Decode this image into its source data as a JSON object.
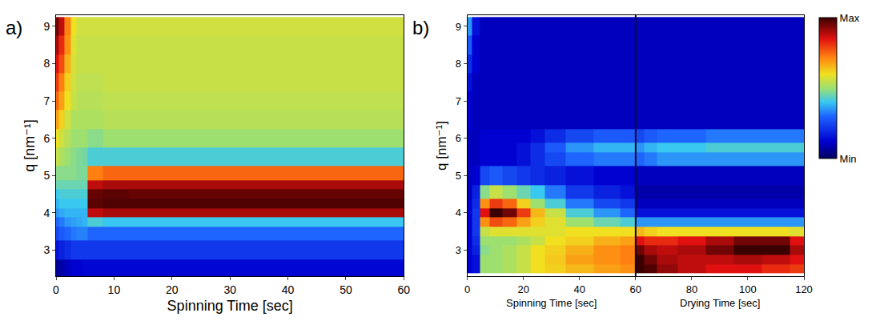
{
  "chart_data": [
    {
      "type": "heatmap",
      "panel": "a)",
      "x_label": "Spinning Time [sec]",
      "y_label": "q [nm⁻¹]",
      "xlim": [
        0,
        60
      ],
      "ylim": [
        2.3,
        9.3
      ],
      "xticks": [
        0,
        10,
        20,
        30,
        40,
        50,
        60
      ],
      "yticks": [
        3,
        4,
        5,
        6,
        7,
        8,
        9
      ],
      "zlim": [
        0,
        1
      ],
      "x": [
        0,
        1,
        2,
        3,
        4,
        5,
        6,
        10,
        15,
        20,
        25,
        30,
        35,
        40,
        45,
        50,
        55,
        60
      ],
      "y": [
        2.5,
        3.0,
        3.5,
        3.75,
        4.0,
        4.25,
        4.5,
        4.75,
        5.0,
        5.5,
        6.0,
        6.5,
        7.0,
        7.5,
        8.0,
        8.5,
        9.0
      ],
      "z": [
        [
          0.05,
          0.08,
          0.1,
          0.12,
          0.12,
          0.13,
          0.13,
          0.13,
          0.13,
          0.13,
          0.13,
          0.13,
          0.13,
          0.13,
          0.13,
          0.13,
          0.13,
          0.13
        ],
        [
          0.15,
          0.18,
          0.2,
          0.22,
          0.22,
          0.22,
          0.22,
          0.22,
          0.22,
          0.22,
          0.22,
          0.22,
          0.22,
          0.22,
          0.22,
          0.22,
          0.22,
          0.22
        ],
        [
          0.25,
          0.28,
          0.3,
          0.32,
          0.33,
          0.33,
          0.3,
          0.3,
          0.3,
          0.3,
          0.3,
          0.3,
          0.3,
          0.3,
          0.3,
          0.3,
          0.3,
          0.3
        ],
        [
          0.3,
          0.32,
          0.35,
          0.36,
          0.37,
          0.38,
          0.42,
          0.4,
          0.4,
          0.4,
          0.4,
          0.4,
          0.4,
          0.4,
          0.4,
          0.4,
          0.4,
          0.4
        ],
        [
          0.35,
          0.37,
          0.38,
          0.38,
          0.38,
          0.38,
          0.88,
          0.9,
          0.9,
          0.9,
          0.9,
          0.9,
          0.9,
          0.9,
          0.9,
          0.9,
          0.9,
          0.9
        ],
        [
          0.38,
          0.4,
          0.4,
          0.4,
          0.4,
          0.4,
          0.97,
          0.98,
          0.98,
          0.98,
          0.98,
          0.98,
          0.98,
          0.98,
          0.98,
          0.98,
          0.98,
          0.98
        ],
        [
          0.4,
          0.42,
          0.42,
          0.42,
          0.42,
          0.42,
          0.96,
          0.97,
          0.96,
          0.96,
          0.96,
          0.96,
          0.96,
          0.96,
          0.96,
          0.96,
          0.96,
          0.96
        ],
        [
          0.45,
          0.45,
          0.45,
          0.45,
          0.45,
          0.45,
          0.88,
          0.9,
          0.9,
          0.9,
          0.9,
          0.9,
          0.9,
          0.9,
          0.9,
          0.9,
          0.9,
          0.9
        ],
        [
          0.48,
          0.48,
          0.48,
          0.48,
          0.47,
          0.47,
          0.72,
          0.75,
          0.75,
          0.75,
          0.75,
          0.75,
          0.75,
          0.75,
          0.75,
          0.75,
          0.75,
          0.75
        ],
        [
          0.55,
          0.52,
          0.5,
          0.48,
          0.47,
          0.46,
          0.42,
          0.42,
          0.42,
          0.42,
          0.42,
          0.42,
          0.42,
          0.42,
          0.42,
          0.42,
          0.42,
          0.42
        ],
        [
          0.6,
          0.56,
          0.53,
          0.5,
          0.5,
          0.5,
          0.48,
          0.5,
          0.5,
          0.5,
          0.5,
          0.5,
          0.5,
          0.5,
          0.5,
          0.5,
          0.5,
          0.5
        ],
        [
          0.68,
          0.62,
          0.56,
          0.52,
          0.52,
          0.52,
          0.52,
          0.53,
          0.53,
          0.53,
          0.53,
          0.53,
          0.53,
          0.53,
          0.53,
          0.53,
          0.53,
          0.53
        ],
        [
          0.75,
          0.68,
          0.6,
          0.55,
          0.53,
          0.53,
          0.53,
          0.54,
          0.54,
          0.54,
          0.54,
          0.54,
          0.54,
          0.54,
          0.54,
          0.54,
          0.54,
          0.54
        ],
        [
          0.8,
          0.72,
          0.62,
          0.56,
          0.54,
          0.54,
          0.54,
          0.55,
          0.55,
          0.55,
          0.55,
          0.55,
          0.55,
          0.55,
          0.55,
          0.55,
          0.55,
          0.55
        ],
        [
          0.85,
          0.78,
          0.66,
          0.57,
          0.55,
          0.55,
          0.55,
          0.55,
          0.55,
          0.55,
          0.55,
          0.55,
          0.55,
          0.55,
          0.55,
          0.55,
          0.55,
          0.55
        ],
        [
          0.9,
          0.82,
          0.7,
          0.58,
          0.55,
          0.55,
          0.55,
          0.55,
          0.55,
          0.55,
          0.55,
          0.55,
          0.55,
          0.55,
          0.55,
          0.55,
          0.55,
          0.55
        ],
        [
          0.95,
          0.88,
          0.72,
          0.6,
          0.56,
          0.56,
          0.56,
          0.56,
          0.56,
          0.56,
          0.56,
          0.56,
          0.56,
          0.56,
          0.56,
          0.56,
          0.56,
          0.56
        ]
      ]
    },
    {
      "type": "heatmap",
      "panel": "b)",
      "y_label": "q [nm⁻¹]",
      "phases": [
        {
          "label": "Spinning Time [sec]",
          "from": 0,
          "to": 60
        },
        {
          "label": "Drying Time [sec]",
          "from": 60,
          "to": 120
        }
      ],
      "xlim": [
        0,
        120
      ],
      "ylim": [
        2.3,
        9.3
      ],
      "xticks": [
        0,
        20,
        40,
        60,
        80,
        100,
        120
      ],
      "yticks": [
        3,
        4,
        5,
        6,
        7,
        8,
        9
      ],
      "colorbar": {
        "range": [
          0,
          1
        ],
        "ticks": [
          {
            "value": 1,
            "label": "Max"
          },
          {
            "value": 0,
            "label": "Min"
          }
        ]
      },
      "x": [
        0,
        3,
        6,
        10,
        15,
        20,
        25,
        30,
        40,
        50,
        59,
        61,
        65,
        70,
        80,
        90,
        100,
        110,
        120
      ],
      "y": [
        2.5,
        2.75,
        3.0,
        3.25,
        3.5,
        3.75,
        4.0,
        4.25,
        4.5,
        5.0,
        5.5,
        5.75,
        6.0,
        6.5,
        7.0,
        7.5,
        8.0,
        8.5,
        9.0
      ],
      "z": [
        [
          0.12,
          0.15,
          0.5,
          0.5,
          0.52,
          0.55,
          0.6,
          0.62,
          0.65,
          0.68,
          0.7,
          1.0,
          0.98,
          0.92,
          0.88,
          0.85,
          0.85,
          0.82,
          0.8
        ],
        [
          0.12,
          0.15,
          0.5,
          0.5,
          0.52,
          0.55,
          0.6,
          0.63,
          0.68,
          0.7,
          0.72,
          1.0,
          0.95,
          0.9,
          0.88,
          0.88,
          0.9,
          0.88,
          0.85
        ],
        [
          0.12,
          0.18,
          0.48,
          0.5,
          0.52,
          0.55,
          0.6,
          0.62,
          0.66,
          0.7,
          0.72,
          0.95,
          0.9,
          0.88,
          0.9,
          0.95,
          1.0,
          1.0,
          0.9
        ],
        [
          0.12,
          0.2,
          0.5,
          0.5,
          0.5,
          0.52,
          0.55,
          0.6,
          0.62,
          0.66,
          0.68,
          0.85,
          0.82,
          0.82,
          0.85,
          0.9,
          0.95,
          0.95,
          0.85
        ],
        [
          0.12,
          0.22,
          0.55,
          0.58,
          0.58,
          0.58,
          0.58,
          0.58,
          0.6,
          0.6,
          0.6,
          0.65,
          0.62,
          0.6,
          0.6,
          0.6,
          0.6,
          0.6,
          0.58
        ],
        [
          0.12,
          0.22,
          0.7,
          0.78,
          0.75,
          0.68,
          0.62,
          0.58,
          0.5,
          0.45,
          0.42,
          0.35,
          0.35,
          0.35,
          0.35,
          0.35,
          0.35,
          0.35,
          0.35
        ],
        [
          0.12,
          0.22,
          0.85,
          1.0,
          0.95,
          0.8,
          0.65,
          0.55,
          0.42,
          0.35,
          0.3,
          0.15,
          0.15,
          0.15,
          0.15,
          0.15,
          0.15,
          0.15,
          0.15
        ],
        [
          0.12,
          0.2,
          0.7,
          0.8,
          0.75,
          0.62,
          0.5,
          0.42,
          0.32,
          0.25,
          0.22,
          0.1,
          0.1,
          0.1,
          0.1,
          0.1,
          0.1,
          0.1,
          0.1
        ],
        [
          0.1,
          0.18,
          0.48,
          0.55,
          0.5,
          0.45,
          0.4,
          0.32,
          0.22,
          0.18,
          0.15,
          0.08,
          0.08,
          0.08,
          0.08,
          0.08,
          0.08,
          0.08,
          0.08
        ],
        [
          0.1,
          0.12,
          0.25,
          0.28,
          0.25,
          0.22,
          0.2,
          0.18,
          0.15,
          0.12,
          0.12,
          0.1,
          0.1,
          0.1,
          0.1,
          0.1,
          0.1,
          0.1,
          0.1
        ],
        [
          0.1,
          0.1,
          0.12,
          0.12,
          0.12,
          0.15,
          0.2,
          0.25,
          0.3,
          0.32,
          0.32,
          0.3,
          0.32,
          0.35,
          0.35,
          0.35,
          0.35,
          0.35,
          0.35
        ],
        [
          0.1,
          0.1,
          0.12,
          0.12,
          0.12,
          0.15,
          0.2,
          0.28,
          0.35,
          0.38,
          0.38,
          0.35,
          0.38,
          0.4,
          0.4,
          0.42,
          0.42,
          0.42,
          0.42
        ],
        [
          0.1,
          0.1,
          0.12,
          0.12,
          0.12,
          0.12,
          0.15,
          0.2,
          0.25,
          0.28,
          0.28,
          0.25,
          0.28,
          0.3,
          0.3,
          0.32,
          0.32,
          0.32,
          0.32
        ],
        [
          0.12,
          0.1,
          0.1,
          0.1,
          0.1,
          0.1,
          0.1,
          0.1,
          0.1,
          0.1,
          0.1,
          0.1,
          0.1,
          0.1,
          0.1,
          0.1,
          0.1,
          0.1,
          0.1
        ],
        [
          0.12,
          0.1,
          0.1,
          0.1,
          0.1,
          0.1,
          0.1,
          0.1,
          0.1,
          0.1,
          0.1,
          0.1,
          0.1,
          0.1,
          0.1,
          0.1,
          0.1,
          0.1,
          0.1
        ],
        [
          0.15,
          0.1,
          0.1,
          0.1,
          0.1,
          0.1,
          0.1,
          0.1,
          0.1,
          0.1,
          0.1,
          0.1,
          0.1,
          0.1,
          0.1,
          0.1,
          0.1,
          0.1,
          0.1
        ],
        [
          0.2,
          0.12,
          0.1,
          0.1,
          0.1,
          0.1,
          0.1,
          0.1,
          0.1,
          0.1,
          0.1,
          0.1,
          0.1,
          0.1,
          0.1,
          0.1,
          0.1,
          0.1,
          0.1
        ],
        [
          0.28,
          0.12,
          0.1,
          0.1,
          0.1,
          0.1,
          0.1,
          0.1,
          0.1,
          0.1,
          0.1,
          0.1,
          0.1,
          0.1,
          0.1,
          0.1,
          0.1,
          0.1,
          0.1
        ],
        [
          0.35,
          0.15,
          0.1,
          0.1,
          0.1,
          0.1,
          0.1,
          0.1,
          0.1,
          0.1,
          0.1,
          0.1,
          0.1,
          0.1,
          0.1,
          0.1,
          0.1,
          0.1,
          0.1
        ]
      ]
    }
  ]
}
